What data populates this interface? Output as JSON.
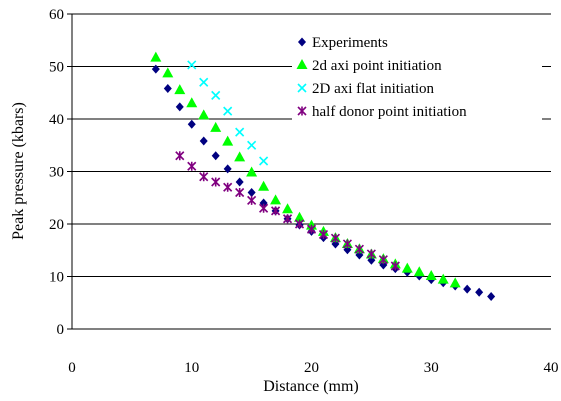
{
  "chart_data": {
    "type": "scatter",
    "xlabel": "Distance (mm)",
    "ylabel": "Peak pressure (kbars)",
    "xlim": [
      0,
      40
    ],
    "ylim": [
      0,
      60
    ],
    "xticks": [
      0,
      10,
      20,
      30,
      40
    ],
    "yticks": [
      0,
      10,
      20,
      30,
      40,
      50,
      60
    ],
    "grid": "horizontal",
    "legend_position": "top-right",
    "series": [
      {
        "name": "Experiments",
        "marker": "diamond",
        "color": "#000080",
        "points": [
          [
            7,
            49.5
          ],
          [
            8,
            45.8
          ],
          [
            9,
            42.3
          ],
          [
            10,
            39
          ],
          [
            11,
            35.8
          ],
          [
            12,
            33
          ],
          [
            13,
            30.5
          ],
          [
            14,
            28
          ],
          [
            15,
            26
          ],
          [
            16,
            24
          ],
          [
            17,
            22.5
          ],
          [
            18,
            21
          ],
          [
            19,
            19.8
          ],
          [
            20,
            18.6
          ],
          [
            21,
            17.4
          ],
          [
            22,
            16.2
          ],
          [
            23,
            15.1
          ],
          [
            24,
            14.1
          ],
          [
            25,
            13.1
          ],
          [
            26,
            12.2
          ],
          [
            27,
            11.5
          ],
          [
            28,
            10.8
          ],
          [
            29,
            10.1
          ],
          [
            30,
            9.4
          ],
          [
            31,
            8.8
          ],
          [
            32,
            8.2
          ],
          [
            33,
            7.6
          ],
          [
            34,
            7
          ],
          [
            35,
            6.2
          ]
        ]
      },
      {
        "name": "2d axi point initiation",
        "marker": "triangle",
        "color": "#00FF00",
        "points": [
          [
            7,
            51.7
          ],
          [
            8,
            48.7
          ],
          [
            9,
            45.5
          ],
          [
            10,
            43
          ],
          [
            11,
            40.7
          ],
          [
            12,
            38.3
          ],
          [
            13,
            35.7
          ],
          [
            14,
            32.7
          ],
          [
            15,
            29.8
          ],
          [
            16,
            27.1
          ],
          [
            17,
            24.5
          ],
          [
            18,
            22.8
          ],
          [
            19,
            21.2
          ],
          [
            20,
            19.7
          ],
          [
            21,
            18.5
          ],
          [
            22,
            17.3
          ],
          [
            23,
            16.2
          ],
          [
            24,
            15.2
          ],
          [
            25,
            14.2
          ],
          [
            26,
            13.3
          ],
          [
            27,
            12.3
          ],
          [
            28,
            11.5
          ],
          [
            29,
            10.8
          ],
          [
            30,
            10.1
          ],
          [
            31,
            9.4
          ],
          [
            32,
            8.7
          ]
        ]
      },
      {
        "name": "2D axi flat initiation",
        "marker": "x",
        "color": "#00FFFF",
        "points": [
          [
            10,
            50.3
          ],
          [
            11,
            47
          ],
          [
            12,
            44.5
          ],
          [
            13,
            41.5
          ],
          [
            14,
            37.5
          ],
          [
            15,
            35
          ],
          [
            16,
            32
          ]
        ]
      },
      {
        "name": "half donor point initiation",
        "marker": "star",
        "color": "#800080",
        "points": [
          [
            9,
            33
          ],
          [
            10,
            31
          ],
          [
            11,
            29
          ],
          [
            12,
            28
          ],
          [
            13,
            27
          ],
          [
            14,
            26
          ],
          [
            15,
            24.5
          ],
          [
            16,
            23
          ],
          [
            17,
            22.5
          ],
          [
            18,
            21
          ],
          [
            19,
            20
          ],
          [
            20,
            19
          ],
          [
            21,
            18
          ],
          [
            22,
            17.3
          ],
          [
            23,
            16.2
          ],
          [
            24,
            15.2
          ],
          [
            25,
            14.3
          ],
          [
            26,
            13.2
          ],
          [
            27,
            12
          ]
        ]
      }
    ]
  }
}
